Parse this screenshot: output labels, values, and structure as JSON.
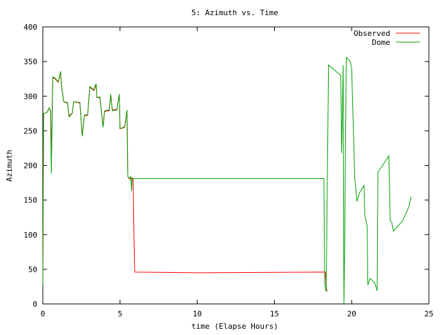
{
  "chart_data": {
    "type": "line",
    "title": "5: Azimuth vs. Time",
    "xlabel": "time (Elapse Hours)",
    "ylabel": "Azimuth",
    "xlim": [
      0,
      25
    ],
    "ylim": [
      0,
      400
    ],
    "x_ticks": [
      "0",
      "5",
      "10",
      "15",
      "20",
      "25"
    ],
    "y_ticks": [
      "0",
      "50",
      "100",
      "150",
      "200",
      "250",
      "300",
      "350",
      "400"
    ],
    "grid": false,
    "legend_position": "top-right",
    "series": [
      {
        "name": "Observed",
        "color": "#ff0000",
        "points": [
          [
            0.0,
            28
          ],
          [
            0.05,
            275
          ],
          [
            0.3,
            277
          ],
          [
            0.4,
            283
          ],
          [
            0.5,
            280
          ],
          [
            0.55,
            215
          ],
          [
            0.65,
            327
          ],
          [
            0.8,
            325
          ],
          [
            1.0,
            320
          ],
          [
            1.15,
            335
          ],
          [
            1.2,
            318
          ],
          [
            1.35,
            292
          ],
          [
            1.6,
            290
          ],
          [
            1.7,
            272
          ],
          [
            1.9,
            275
          ],
          [
            2.0,
            292
          ],
          [
            2.4,
            290
          ],
          [
            2.55,
            243
          ],
          [
            2.7,
            272
          ],
          [
            2.9,
            272
          ],
          [
            3.05,
            313
          ],
          [
            3.3,
            308
          ],
          [
            3.45,
            316
          ],
          [
            3.5,
            298
          ],
          [
            3.7,
            298
          ],
          [
            3.9,
            257
          ],
          [
            4.0,
            278
          ],
          [
            4.3,
            279
          ],
          [
            4.4,
            302
          ],
          [
            4.5,
            280
          ],
          [
            4.8,
            281
          ],
          [
            4.95,
            302
          ],
          [
            5.0,
            253
          ],
          [
            5.3,
            255
          ],
          [
            5.45,
            278
          ],
          [
            5.5,
            185
          ],
          [
            5.6,
            180
          ],
          [
            5.7,
            183
          ],
          [
            5.75,
            165
          ],
          [
            5.78,
            182
          ],
          [
            5.85,
            181
          ],
          [
            5.9,
            100
          ],
          [
            5.95,
            46
          ],
          [
            10.0,
            45
          ],
          [
            18.3,
            46
          ],
          [
            18.35,
            25
          ],
          [
            18.4,
            18
          ]
        ]
      },
      {
        "name": "Dome",
        "color": "#00a000",
        "points": [
          [
            0.0,
            28
          ],
          [
            0.05,
            275
          ],
          [
            0.3,
            277
          ],
          [
            0.4,
            283
          ],
          [
            0.5,
            280
          ],
          [
            0.55,
            188
          ],
          [
            0.65,
            328
          ],
          [
            0.8,
            326
          ],
          [
            1.0,
            321
          ],
          [
            1.15,
            336
          ],
          [
            1.2,
            318
          ],
          [
            1.35,
            292
          ],
          [
            1.6,
            291
          ],
          [
            1.7,
            270
          ],
          [
            1.9,
            275
          ],
          [
            2.0,
            292
          ],
          [
            2.4,
            291
          ],
          [
            2.55,
            242
          ],
          [
            2.7,
            273
          ],
          [
            2.9,
            273
          ],
          [
            3.05,
            314
          ],
          [
            3.3,
            309
          ],
          [
            3.45,
            318
          ],
          [
            3.5,
            298
          ],
          [
            3.7,
            299
          ],
          [
            3.9,
            255
          ],
          [
            4.0,
            279
          ],
          [
            4.3,
            280
          ],
          [
            4.4,
            303
          ],
          [
            4.5,
            279
          ],
          [
            4.8,
            280
          ],
          [
            4.95,
            303
          ],
          [
            5.0,
            253
          ],
          [
            5.3,
            256
          ],
          [
            5.45,
            280
          ],
          [
            5.5,
            184
          ],
          [
            5.6,
            181
          ],
          [
            5.7,
            184
          ],
          [
            5.75,
            163
          ],
          [
            5.78,
            181
          ],
          [
            5.85,
            181
          ],
          [
            18.2,
            181
          ],
          [
            18.25,
            30
          ],
          [
            18.35,
            18
          ],
          [
            18.5,
            345
          ],
          [
            19.3,
            330
          ],
          [
            19.35,
            218
          ],
          [
            19.45,
            345
          ],
          [
            19.5,
            0
          ],
          [
            19.55,
            90
          ],
          [
            19.65,
            356
          ],
          [
            19.9,
            350
          ],
          [
            20.0,
            340
          ],
          [
            20.2,
            180
          ],
          [
            20.35,
            148
          ],
          [
            20.5,
            160
          ],
          [
            20.8,
            171
          ],
          [
            20.85,
            128
          ],
          [
            21.0,
            112
          ],
          [
            21.05,
            27
          ],
          [
            21.2,
            37
          ],
          [
            21.5,
            30
          ],
          [
            21.65,
            19
          ],
          [
            21.7,
            190
          ],
          [
            22.0,
            200
          ],
          [
            22.3,
            210
          ],
          [
            22.4,
            214
          ],
          [
            22.5,
            120
          ],
          [
            22.6,
            118
          ],
          [
            22.7,
            105
          ],
          [
            22.9,
            110
          ],
          [
            23.3,
            120
          ],
          [
            23.7,
            140
          ],
          [
            23.85,
            155
          ]
        ]
      }
    ]
  }
}
